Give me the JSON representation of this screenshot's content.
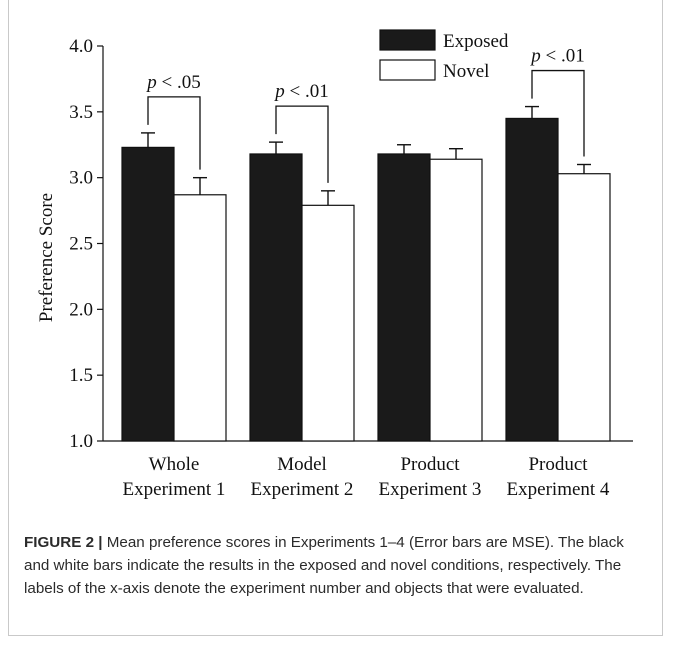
{
  "chart_data": {
    "type": "bar",
    "categories": [
      [
        "Whole",
        "Experiment 1"
      ],
      [
        "Model",
        "Experiment 2"
      ],
      [
        "Product",
        "Experiment 3"
      ],
      [
        "Product",
        "Experiment 4"
      ]
    ],
    "series": [
      {
        "name": "Exposed",
        "values": [
          3.23,
          3.18,
          3.18,
          3.45
        ],
        "errors": [
          0.11,
          0.09,
          0.07,
          0.09
        ],
        "color": "#1a1a1a"
      },
      {
        "name": "Novel",
        "values": [
          2.87,
          2.79,
          3.14,
          3.03
        ],
        "errors": [
          0.13,
          0.11,
          0.08,
          0.07
        ],
        "color": "#ffffff"
      }
    ],
    "ylabel": "Preference Score",
    "ylim": [
      1.0,
      4.0
    ],
    "yticks": [
      "1.0",
      "1.5",
      "2.0",
      "2.5",
      "3.0",
      "3.5",
      "4.0"
    ],
    "legend": "top-center",
    "annotations": [
      {
        "category": 0,
        "text": "p < .05"
      },
      {
        "category": 1,
        "text": "p < .01"
      },
      {
        "category": 3,
        "text": "p < .01"
      }
    ]
  },
  "caption": {
    "label": "FIGURE 2 |",
    "text": " Mean preference scores in Experiments 1–4 (Error bars are MSE). The black and white bars indicate the results in the exposed and novel conditions, respectively. The labels of the x-axis denote the experiment number and objects that were evaluated."
  }
}
